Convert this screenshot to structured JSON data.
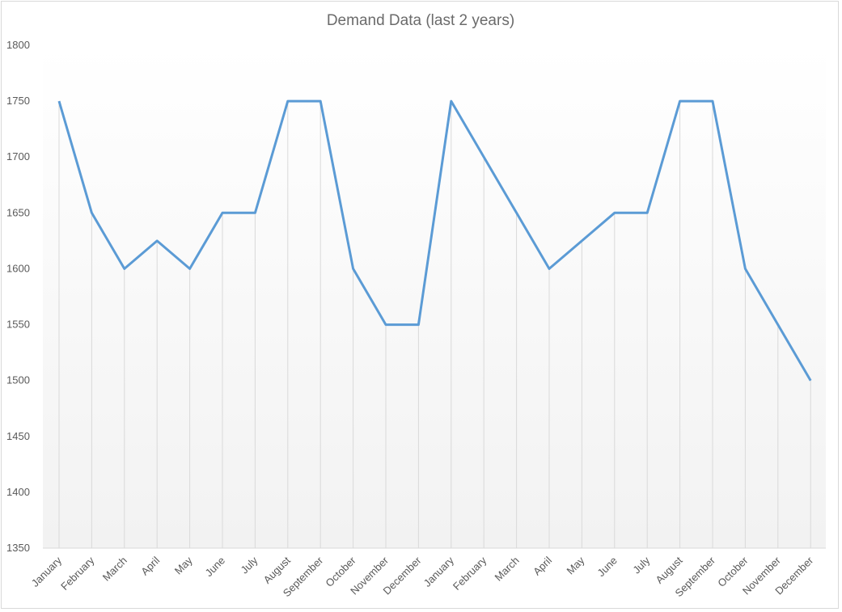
{
  "chart_data": {
    "type": "line",
    "title": "Demand Data (last 2 years)",
    "xlabel": "",
    "ylabel": "",
    "categories": [
      "January",
      "February",
      "March",
      "April",
      "May",
      "June",
      "July",
      "August",
      "September",
      "October",
      "November",
      "December",
      "January",
      "February",
      "March",
      "April",
      "May",
      "June",
      "July",
      "August",
      "September",
      "October",
      "November",
      "December"
    ],
    "series": [
      {
        "values": [
          1750,
          1650,
          1600,
          1625,
          1600,
          1650,
          1650,
          1750,
          1750,
          1600,
          1550,
          1550,
          1750,
          1700,
          1650,
          1600,
          1625,
          1650,
          1650,
          1750,
          1750,
          1600,
          1550,
          1500
        ]
      }
    ],
    "ylim": [
      1350,
      1800
    ],
    "yticks": [
      1350,
      1400,
      1450,
      1500,
      1550,
      1600,
      1650,
      1700,
      1750,
      1800
    ],
    "grid": "vertical drop lines",
    "legend": "none",
    "colors": {
      "line": "#5b9bd5",
      "dropline": "#d9d9d9",
      "axis": "#d9d9d9",
      "plot_bg_bottom": "#f2f2f2"
    }
  }
}
